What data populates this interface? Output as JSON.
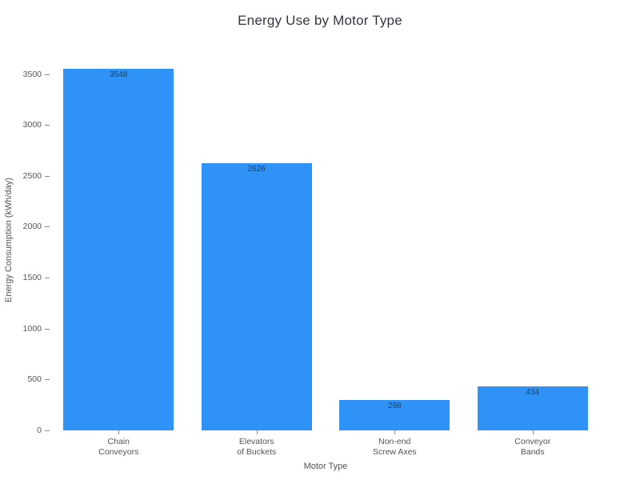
{
  "chart_data": {
    "type": "bar",
    "title": "Energy Use by Motor Type",
    "xlabel": "Motor Type",
    "ylabel": "Energy Consumption (kWh/day)",
    "categories": [
      "Chain\nConveyors",
      "Elevators\nof Buckets",
      "Non-end\nScrew Axes",
      "Conveyor\nBands"
    ],
    "values": [
      3548,
      2626,
      298,
      434
    ],
    "bar_labels": [
      "3548",
      "2626",
      "298",
      "434"
    ],
    "yticks": [
      0,
      500,
      1000,
      1500,
      2000,
      2500,
      3000,
      3500
    ],
    "ylim": [
      0,
      3740
    ],
    "grid": false,
    "legend": "none",
    "colors": {
      "bar": "#2f92f6",
      "title_text": "#333740",
      "tick_text": "#545454",
      "axis_title_text": "#545454",
      "bar_label_text": "#22405c",
      "tick_mark": "#8a8a8a",
      "background": "#ffffff"
    }
  }
}
